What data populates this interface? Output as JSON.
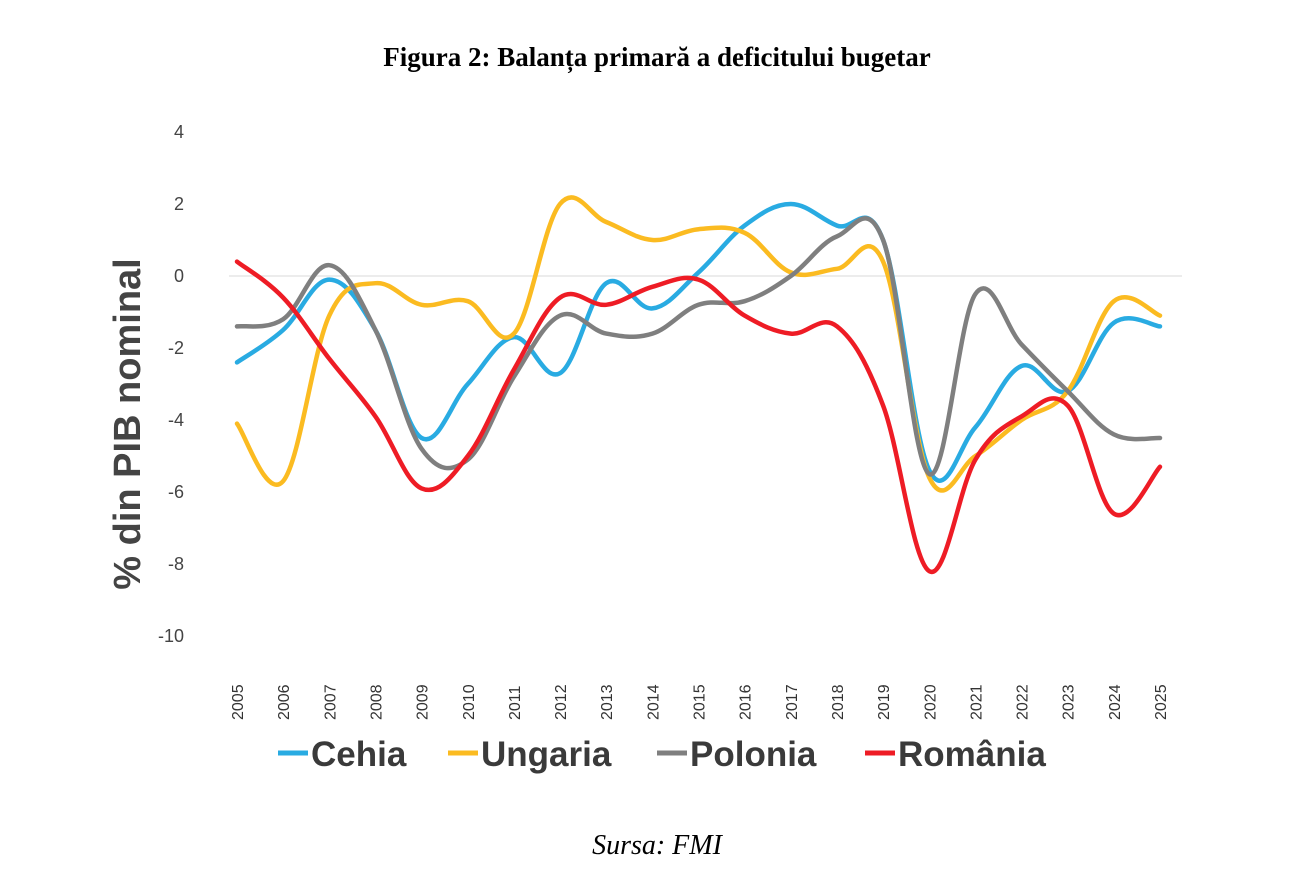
{
  "header": {
    "title": "Figura 2: Balanța primară a deficitului bugetar"
  },
  "footer": {
    "source": "Sursa: FMI"
  },
  "chart_data": {
    "type": "line",
    "title": "Figura 2: Balanța primară a deficitului bugetar",
    "xlabel": "",
    "ylabel": "% din PIB nominal",
    "ylim": [
      -10,
      4
    ],
    "yticks": [
      4,
      2,
      0,
      -2,
      -4,
      -6,
      -8,
      -10
    ],
    "grid": false,
    "legend_position": "bottom",
    "categories": [
      "2005",
      "2006",
      "2007",
      "2008",
      "2009",
      "2010",
      "2011",
      "2012",
      "2013",
      "2014",
      "2015",
      "2016",
      "2017",
      "2018",
      "2019",
      "2020",
      "2021",
      "2022",
      "2023",
      "2024",
      "2025"
    ],
    "series": [
      {
        "name": "Cehia",
        "color": "#29abe2",
        "values": [
          -2.4,
          -1.5,
          -0.1,
          -1.5,
          -4.5,
          -3.0,
          -1.7,
          -2.7,
          -0.2,
          -0.9,
          0.1,
          1.4,
          2.0,
          1.4,
          1.0,
          -5.4,
          -4.2,
          -2.5,
          -3.2,
          -1.3,
          -1.4
        ]
      },
      {
        "name": "Ungaria",
        "color": "#fbbb21",
        "values": [
          -4.1,
          -5.7,
          -1.1,
          -0.2,
          -0.8,
          -0.7,
          -1.6,
          2.0,
          1.5,
          1.0,
          1.3,
          1.2,
          0.1,
          0.2,
          0.4,
          -5.6,
          -5.0,
          -4.0,
          -3.2,
          -0.7,
          -1.1
        ]
      },
      {
        "name": "Polonia",
        "color": "#7f7f7f",
        "values": [
          -1.4,
          -1.2,
          0.3,
          -1.5,
          -4.8,
          -5.1,
          -2.8,
          -1.1,
          -1.6,
          -1.6,
          -0.8,
          -0.7,
          0.0,
          1.1,
          1.0,
          -5.5,
          -0.5,
          -1.9,
          -3.2,
          -4.4,
          -4.5
        ]
      },
      {
        "name": "România",
        "color": "#ee1c25",
        "values": [
          0.4,
          -0.6,
          -2.3,
          -3.9,
          -5.9,
          -5.0,
          -2.6,
          -0.6,
          -0.8,
          -0.3,
          -0.1,
          -1.1,
          -1.6,
          -1.4,
          -3.6,
          -8.2,
          -5.1,
          -3.9,
          -3.6,
          -6.6,
          -5.3
        ]
      }
    ]
  }
}
